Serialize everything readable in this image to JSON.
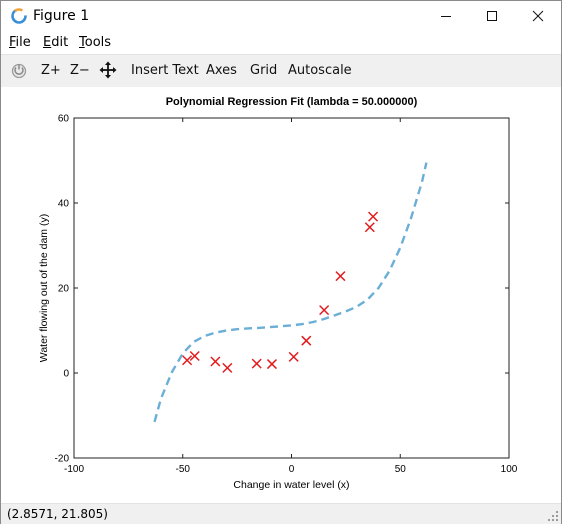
{
  "window": {
    "title": "Figure 1",
    "controls": {
      "minimize": "minimize",
      "maximize": "maximize",
      "close": "close"
    }
  },
  "menubar": {
    "items": [
      {
        "label": "File",
        "mnemonic": "F",
        "rest": "ile"
      },
      {
        "label": "Edit",
        "mnemonic": "E",
        "rest": "dit"
      },
      {
        "label": "Tools",
        "mnemonic": "T",
        "rest": "ools"
      }
    ]
  },
  "toolbar": {
    "rotate_icon": "rotate-icon",
    "zoom_in": "Z+",
    "zoom_out": "Z−",
    "pan_icon": "pan-icon",
    "insert_text": "Insert Text",
    "axes": "Axes",
    "grid": "Grid",
    "autoscale": "Autoscale"
  },
  "statusbar": {
    "coordinates": "(2.8571, 21.805)"
  },
  "chart_data": {
    "type": "scatter",
    "title": "Polynomial Regression Fit (lambda = 50.000000)",
    "xlabel": "Change in water level (x)",
    "ylabel": "Water flowing out of the dam (y)",
    "xlim": [
      -100,
      100
    ],
    "ylim": [
      -20,
      60
    ],
    "xticks": [
      -100,
      -50,
      0,
      50,
      100
    ],
    "yticks": [
      -20,
      0,
      20,
      40,
      60
    ],
    "xtick_labels": [
      "-100",
      "-50",
      "0",
      "50",
      "100"
    ],
    "ytick_labels": [
      "-20",
      "0",
      "20",
      "40",
      "60"
    ],
    "grid": false,
    "series": [
      {
        "kind": "scatter",
        "marker": "x",
        "color": "#e31a1c",
        "points": [
          [
            -48,
            3
          ],
          [
            -44.5,
            4
          ],
          [
            -35,
            2.7
          ],
          [
            -29.5,
            1.2
          ],
          [
            -16,
            2.2
          ],
          [
            -9,
            2.1
          ],
          [
            1,
            3.8
          ],
          [
            6.8,
            7.6
          ],
          [
            15,
            14.8
          ],
          [
            22.5,
            22.8
          ],
          [
            36,
            34.3
          ],
          [
            37.5,
            36.8
          ]
        ]
      },
      {
        "kind": "line",
        "style": "dashed",
        "color": "#6baed6",
        "points": [
          [
            -63,
            -11.5
          ],
          [
            -60,
            -6
          ],
          [
            -55,
            0.2
          ],
          [
            -50,
            4.6
          ],
          [
            -45,
            7.3
          ],
          [
            -40,
            8.7
          ],
          [
            -35,
            9.5
          ],
          [
            -30,
            10
          ],
          [
            -25,
            10.3
          ],
          [
            -20,
            10.5
          ],
          [
            -15,
            10.6
          ],
          [
            -10,
            10.8
          ],
          [
            -5,
            11
          ],
          [
            0,
            11.2
          ],
          [
            5,
            11.5
          ],
          [
            10,
            12
          ],
          [
            15,
            12.7
          ],
          [
            20,
            13.6
          ],
          [
            25,
            14.5
          ],
          [
            30,
            15.6
          ],
          [
            35,
            17.3
          ],
          [
            40,
            20
          ],
          [
            45,
            24
          ],
          [
            50,
            29.5
          ],
          [
            55,
            36.5
          ],
          [
            60,
            45
          ],
          [
            62,
            49.5
          ]
        ]
      }
    ]
  }
}
